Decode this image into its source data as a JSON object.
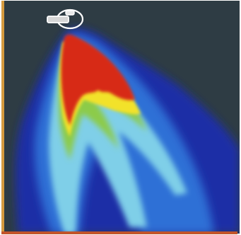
{
  "image": {
    "kind": "false-color thermal/heatmap image",
    "colormap": [
      "#1f2ea6",
      "#2f6fd6",
      "#7fcfe8",
      "#8ccb4a",
      "#f2e22a",
      "#d72916"
    ],
    "background": "#2e3c44",
    "frame_edges": {
      "left": "#d59a3e",
      "bottom": "#c2542a"
    }
  }
}
